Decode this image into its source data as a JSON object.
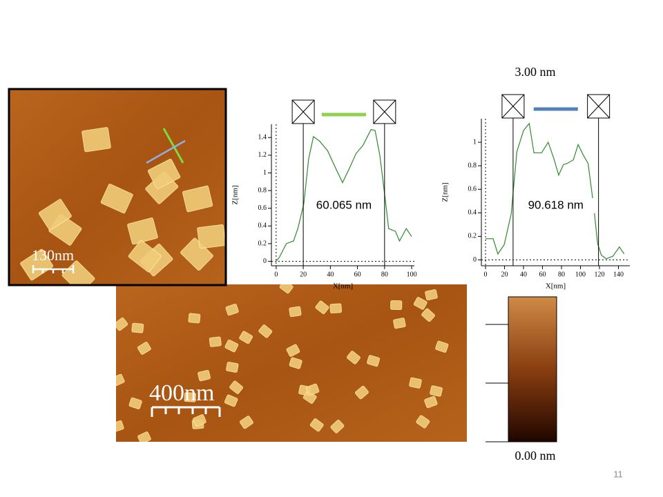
{
  "chart_data": [
    {
      "type": "line",
      "xlabel": "X[nm]",
      "ylabel": "Z[nm]",
      "x": [
        0,
        2.5,
        7.5,
        12.8,
        16,
        20.4,
        24,
        27.5,
        32,
        38,
        44,
        49,
        54,
        59,
        64,
        70,
        73,
        76.5,
        80.6,
        83,
        88,
        91,
        96,
        100
      ],
      "series": [
        {
          "color": "#2e8b2e",
          "values": [
            0,
            0.05,
            0.2,
            0.23,
            0.37,
            0.65,
            1.16,
            1.41,
            1.36,
            1.25,
            1.05,
            0.89,
            1.05,
            1.22,
            1.31,
            1.49,
            1.48,
            1.2,
            0.69,
            0.37,
            0.34,
            0.23,
            0.37,
            0.28
          ]
        }
      ],
      "xlim": [
        -3.5,
        102
      ],
      "ylim": [
        -0.05,
        1.55
      ],
      "xticks": [
        0,
        20,
        40,
        60,
        80,
        100
      ],
      "yticks": [
        0,
        0.2,
        0.4,
        0.6,
        0.8,
        1,
        1.2,
        1.4
      ],
      "cursors": [
        20,
        80
      ],
      "measurement": "60.065 nm",
      "marker_color": "#92d050"
    },
    {
      "type": "line",
      "xlabel": "X[nm]",
      "ylabel": "Z[nm]",
      "x": [
        0,
        8,
        13,
        19.7,
        27,
        33,
        40,
        46,
        51,
        59,
        66,
        72,
        77,
        82,
        86,
        92.5,
        97.5,
        103,
        108,
        114,
        118,
        122,
        127,
        134,
        141,
        146
      ],
      "series": [
        {
          "color": "#2e8b2e",
          "values": [
            0.18,
            0.18,
            0.05,
            0.13,
            0.39,
            0.92,
            1.1,
            1.16,
            0.91,
            0.91,
            1,
            0.86,
            0.72,
            0.81,
            0.82,
            0.85,
            0.98,
            0.89,
            0.82,
            0.45,
            0.14,
            0.04,
            0.01,
            0.03,
            0.11,
            0.05
          ]
        }
      ],
      "xlim": [
        -4.4,
        152
      ],
      "ylim": [
        -0.05,
        1.2
      ],
      "xticks": [
        0,
        20,
        40,
        60,
        80,
        100,
        120,
        140
      ],
      "yticks": [
        0,
        0.2,
        0.4,
        0.6,
        0.8,
        1
      ],
      "cursors": [
        29,
        119
      ],
      "measurement": "90.618 nm",
      "marker_color": "#4f81bd"
    }
  ],
  "images": {
    "inset_scale": "130nm",
    "main_scale": "400nm"
  },
  "colorbar": {
    "top": "3.00 nm",
    "bottom": "0.00 nm"
  },
  "page_number": "11"
}
